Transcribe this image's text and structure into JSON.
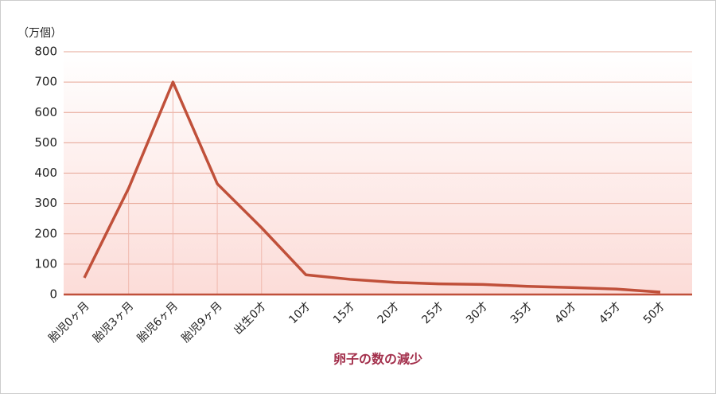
{
  "chart_data": {
    "type": "line",
    "y_unit": "（万個）",
    "x_axis_title": "卵子の数の減少",
    "categories": [
      "胎児0ヶ月",
      "胎児3ヶ月",
      "胎児6ヶ月",
      "胎児9ヶ月",
      "出生0才",
      "10才",
      "15才",
      "20才",
      "25才",
      "30才",
      "35才",
      "40才",
      "45才",
      "50才"
    ],
    "series": [
      {
        "color": "#c0503a",
        "values": [
          55,
          350,
          700,
          365,
          220,
          65,
          50,
          40,
          35,
          33,
          27,
          23,
          18,
          8
        ]
      }
    ],
    "ylim": [
      0,
      800
    ],
    "yticks": [
      0,
      100,
      200,
      300,
      400,
      500,
      600,
      700,
      800
    ],
    "grid": true,
    "title_color": "#a3304c"
  }
}
